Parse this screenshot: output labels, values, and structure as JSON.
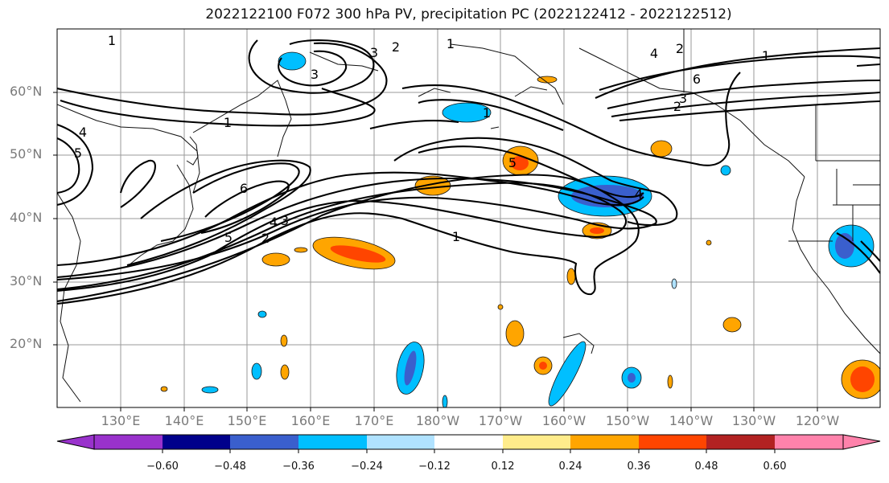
{
  "title": "2022122100 F072 300 hPa PV, precipitation PC (2022122412 - 2022122512)",
  "lat_labels": [
    "60°N",
    "50°N",
    "40°N",
    "30°N",
    "20°N"
  ],
  "lon_labels": [
    "130°E",
    "140°E",
    "150°E",
    "160°E",
    "170°E",
    "180°W",
    "170°W",
    "160°W",
    "150°W",
    "140°W",
    "130°W",
    "120°W"
  ],
  "contour_labels": [
    "1",
    "2",
    "3",
    "4",
    "5",
    "6",
    "1",
    "1",
    "2",
    "3",
    "4",
    "5",
    "6",
    "1",
    "2",
    "3",
    "4",
    "5",
    "1",
    "1",
    "2",
    "3",
    "4"
  ],
  "colorbar": {
    "levels": [
      "−0.60",
      "−0.48",
      "−0.36",
      "−0.24",
      "−0.12",
      "0.12",
      "0.24",
      "0.36",
      "0.48",
      "0.60"
    ],
    "colors": [
      "#9932cc",
      "#00008b",
      "#3a5fcd",
      "#00bfff",
      "#b0e2ff",
      "#ffffff",
      "#ffec8b",
      "#ffa500",
      "#ff4500",
      "#b22222",
      "#ff82ab"
    ]
  }
}
